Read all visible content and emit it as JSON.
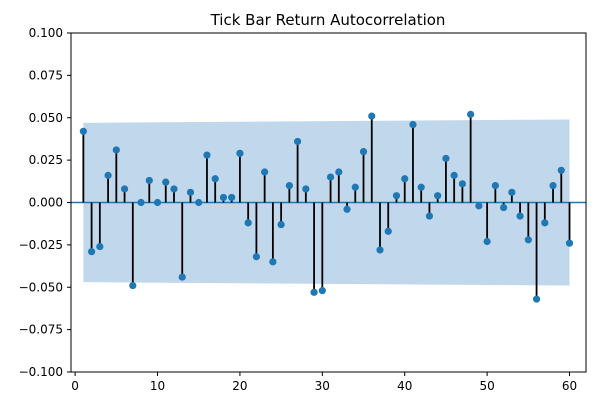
{
  "chart_data": {
    "type": "stem",
    "title": "Tick Bar Return Autocorrelation",
    "xlabel": "",
    "ylabel": "",
    "xlim": [
      -0.5,
      62
    ],
    "ylim": [
      -0.1,
      0.1
    ],
    "xticks": [
      0,
      10,
      20,
      30,
      40,
      50,
      60
    ],
    "yticks": [
      -0.1,
      -0.075,
      -0.05,
      -0.025,
      0.0,
      0.025,
      0.05,
      0.075,
      0.1
    ],
    "ytick_labels": [
      "−0.100",
      "−0.075",
      "−0.050",
      "−0.025",
      "0.000",
      "0.025",
      "0.050",
      "0.075",
      "0.100"
    ],
    "xtick_labels": [
      "0",
      "10",
      "20",
      "30",
      "40",
      "50",
      "60"
    ],
    "grid": false,
    "confidence_band": {
      "x": [
        1,
        60
      ],
      "upper": [
        0.047,
        0.049
      ],
      "lower": [
        -0.047,
        -0.049
      ],
      "color": "#c1d7eb"
    },
    "lags": [
      1,
      2,
      3,
      4,
      5,
      6,
      7,
      8,
      9,
      10,
      11,
      12,
      13,
      14,
      15,
      16,
      17,
      18,
      19,
      20,
      21,
      22,
      23,
      24,
      25,
      26,
      27,
      28,
      29,
      30,
      31,
      32,
      33,
      34,
      35,
      36,
      37,
      38,
      39,
      40,
      41,
      42,
      43,
      44,
      45,
      46,
      47,
      48,
      49,
      50,
      51,
      52,
      53,
      54,
      55,
      56,
      57,
      58,
      59,
      60
    ],
    "values": [
      0.042,
      -0.029,
      -0.026,
      0.016,
      0.031,
      0.008,
      -0.049,
      0.0,
      0.013,
      0.0,
      0.012,
      0.008,
      -0.044,
      0.006,
      0.0,
      0.028,
      0.014,
      0.003,
      0.003,
      0.029,
      -0.012,
      -0.032,
      0.018,
      -0.035,
      -0.013,
      0.01,
      0.036,
      0.008,
      -0.053,
      -0.052,
      0.015,
      0.018,
      -0.004,
      0.009,
      0.03,
      0.051,
      -0.028,
      -0.017,
      0.004,
      0.014,
      0.046,
      0.009,
      -0.008,
      0.004,
      0.026,
      0.016,
      0.011,
      0.052,
      -0.002,
      -0.023,
      0.01,
      -0.003,
      0.006,
      -0.008,
      -0.022,
      -0.057,
      -0.012,
      0.01,
      0.019,
      -0.024
    ],
    "colors": {
      "marker": "#1f77b4",
      "stem": "#000000",
      "zero_line": "#1f77b4",
      "axes": "#000000"
    }
  }
}
